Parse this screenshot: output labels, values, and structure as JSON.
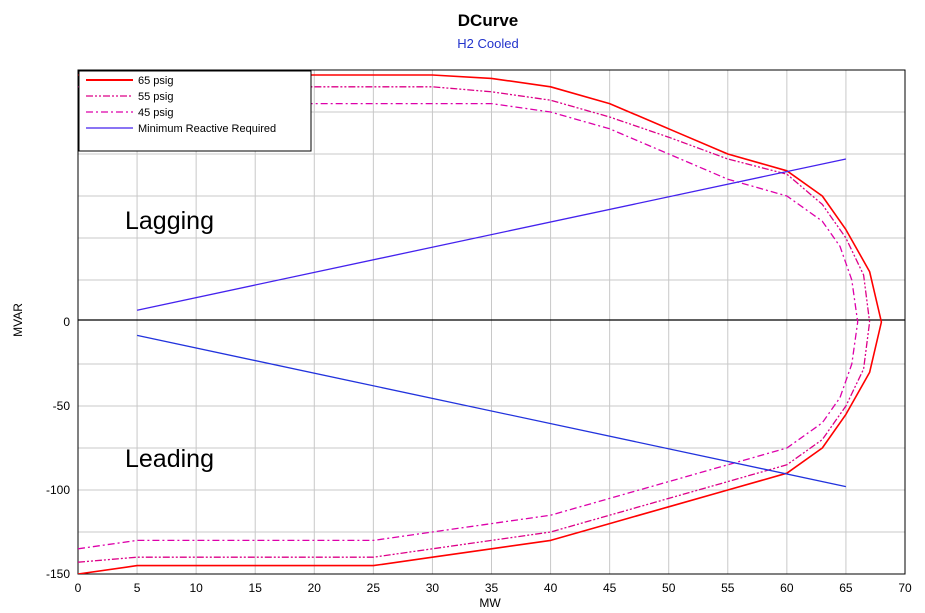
{
  "chart_data": {
    "type": "line",
    "title": "DCurve",
    "subtitle": "H2 Cooled",
    "xlabel": "MW",
    "ylabel": "MVAR",
    "xlim": [
      0,
      70
    ],
    "ylim": [
      -150,
      150
    ],
    "x_ticks": [
      0,
      5,
      10,
      15,
      20,
      25,
      30,
      35,
      40,
      45,
      50,
      55,
      60,
      65,
      70
    ],
    "y_ticks": [
      -150,
      -100,
      -50,
      0
    ],
    "grid": true,
    "legend": "top-left",
    "annotations": [
      "Lagging",
      "Leading"
    ],
    "series": [
      {
        "name": "65 psig",
        "color": "#ff0000",
        "dash": "solid",
        "x": [
          0,
          5,
          10,
          15,
          20,
          25,
          30,
          35,
          40,
          45,
          50,
          55,
          60,
          63,
          65,
          67,
          68,
          67,
          65,
          63,
          60,
          55,
          50,
          45,
          40,
          35,
          30,
          25,
          20,
          15,
          10,
          5,
          0
        ],
        "y": [
          -150,
          -145,
          -145,
          -145,
          -145,
          -145,
          -140,
          -135,
          -130,
          -120,
          -110,
          -100,
          -90,
          -75,
          -55,
          -30,
          0,
          30,
          55,
          75,
          90,
          100,
          115,
          130,
          140,
          145,
          147,
          147,
          147,
          147,
          147,
          147,
          147
        ]
      },
      {
        "name": "55 psig",
        "color": "#dd0088",
        "dash": "dashdotdot",
        "x": [
          0,
          5,
          10,
          15,
          20,
          25,
          30,
          35,
          40,
          45,
          50,
          55,
          60,
          63,
          65,
          66.5,
          67,
          66.5,
          65,
          63,
          60,
          55,
          50,
          45,
          40,
          35,
          30,
          25,
          20,
          15,
          10,
          5,
          0
        ],
        "y": [
          -143,
          -140,
          -140,
          -140,
          -140,
          -140,
          -135,
          -130,
          -125,
          -115,
          -105,
          -95,
          -85,
          -70,
          -50,
          -28,
          0,
          28,
          50,
          70,
          88,
          97,
          110,
          122,
          132,
          137,
          140,
          140,
          140,
          140,
          140,
          140,
          140
        ]
      },
      {
        "name": "45 psig",
        "color": "#dd00aa",
        "dash": "dashdot",
        "x": [
          0,
          5,
          10,
          15,
          20,
          25,
          30,
          35,
          40,
          45,
          50,
          55,
          60,
          63,
          64.5,
          65.5,
          66,
          65.5,
          64.5,
          63,
          60,
          55,
          50,
          45,
          40,
          35,
          30,
          25,
          20,
          15,
          10,
          5,
          0
        ],
        "y": [
          -135,
          -130,
          -130,
          -130,
          -130,
          -130,
          -125,
          -120,
          -115,
          -105,
          -95,
          -85,
          -75,
          -60,
          -45,
          -25,
          0,
          25,
          45,
          60,
          75,
          85,
          100,
          115,
          125,
          130,
          130,
          130,
          130,
          130,
          130,
          130,
          130
        ]
      },
      {
        "name": "Minimum Reactive Required",
        "color": "#4422ee",
        "dash": "solid",
        "x": [
          5,
          65
        ],
        "y": [
          7,
          97
        ]
      },
      {
        "name": "",
        "color": "#2233dd",
        "dash": "solid",
        "x": [
          5,
          65
        ],
        "y": [
          -8,
          -98
        ]
      }
    ]
  }
}
